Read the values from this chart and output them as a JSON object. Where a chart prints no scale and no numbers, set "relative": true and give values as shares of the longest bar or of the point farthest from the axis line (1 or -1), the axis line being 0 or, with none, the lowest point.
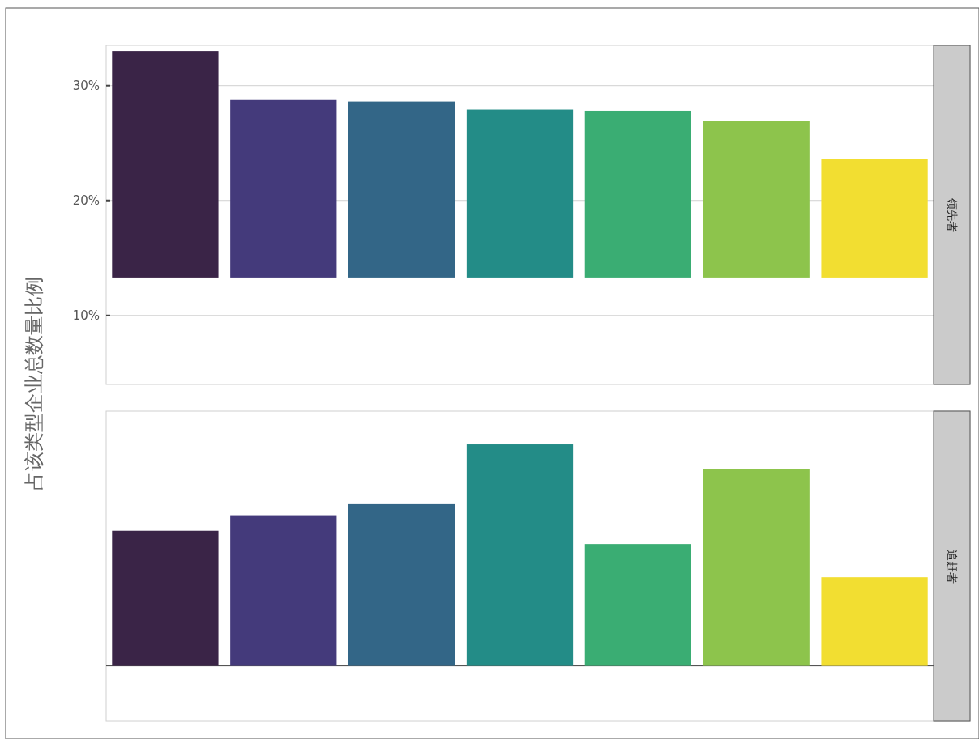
{
  "chart_data": [
    {
      "type": "bar",
      "annotations": [
        "领先者"
      ],
      "ylabel": "占该类型企业总数量比例",
      "categories": [
        null,
        null,
        null,
        null,
        null,
        null,
        null
      ],
      "base": [
        13.3,
        13.3,
        13.3,
        13.3,
        13.3,
        13.3,
        13.3
      ],
      "values": [
        19.7,
        15.5,
        15.3,
        14.6,
        14.5,
        13.6,
        10.3
      ],
      "colors": [
        "#3a2447",
        "#443a7b",
        "#336687",
        "#238c87",
        "#3aad73",
        "#8dc44c",
        "#f2de31"
      ],
      "ylim": [
        4,
        33.5
      ],
      "yticks": [
        {
          "value": 10,
          "label": "10%"
        },
        {
          "value": 20,
          "label": "20%"
        },
        {
          "value": 30,
          "label": "30%"
        }
      ],
      "grid": true
    },
    {
      "type": "bar",
      "annotations": [
        "追赶者"
      ],
      "relative": true,
      "categories": [
        null,
        null,
        null,
        null,
        null,
        null,
        null
      ],
      "values": [
        0.61,
        0.68,
        0.73,
        1,
        0.55,
        0.89,
        0.4
      ],
      "colors": [
        "#3a2447",
        "#443a7b",
        "#336687",
        "#238c87",
        "#3aad73",
        "#8dc44c",
        "#f2de31"
      ]
    }
  ]
}
